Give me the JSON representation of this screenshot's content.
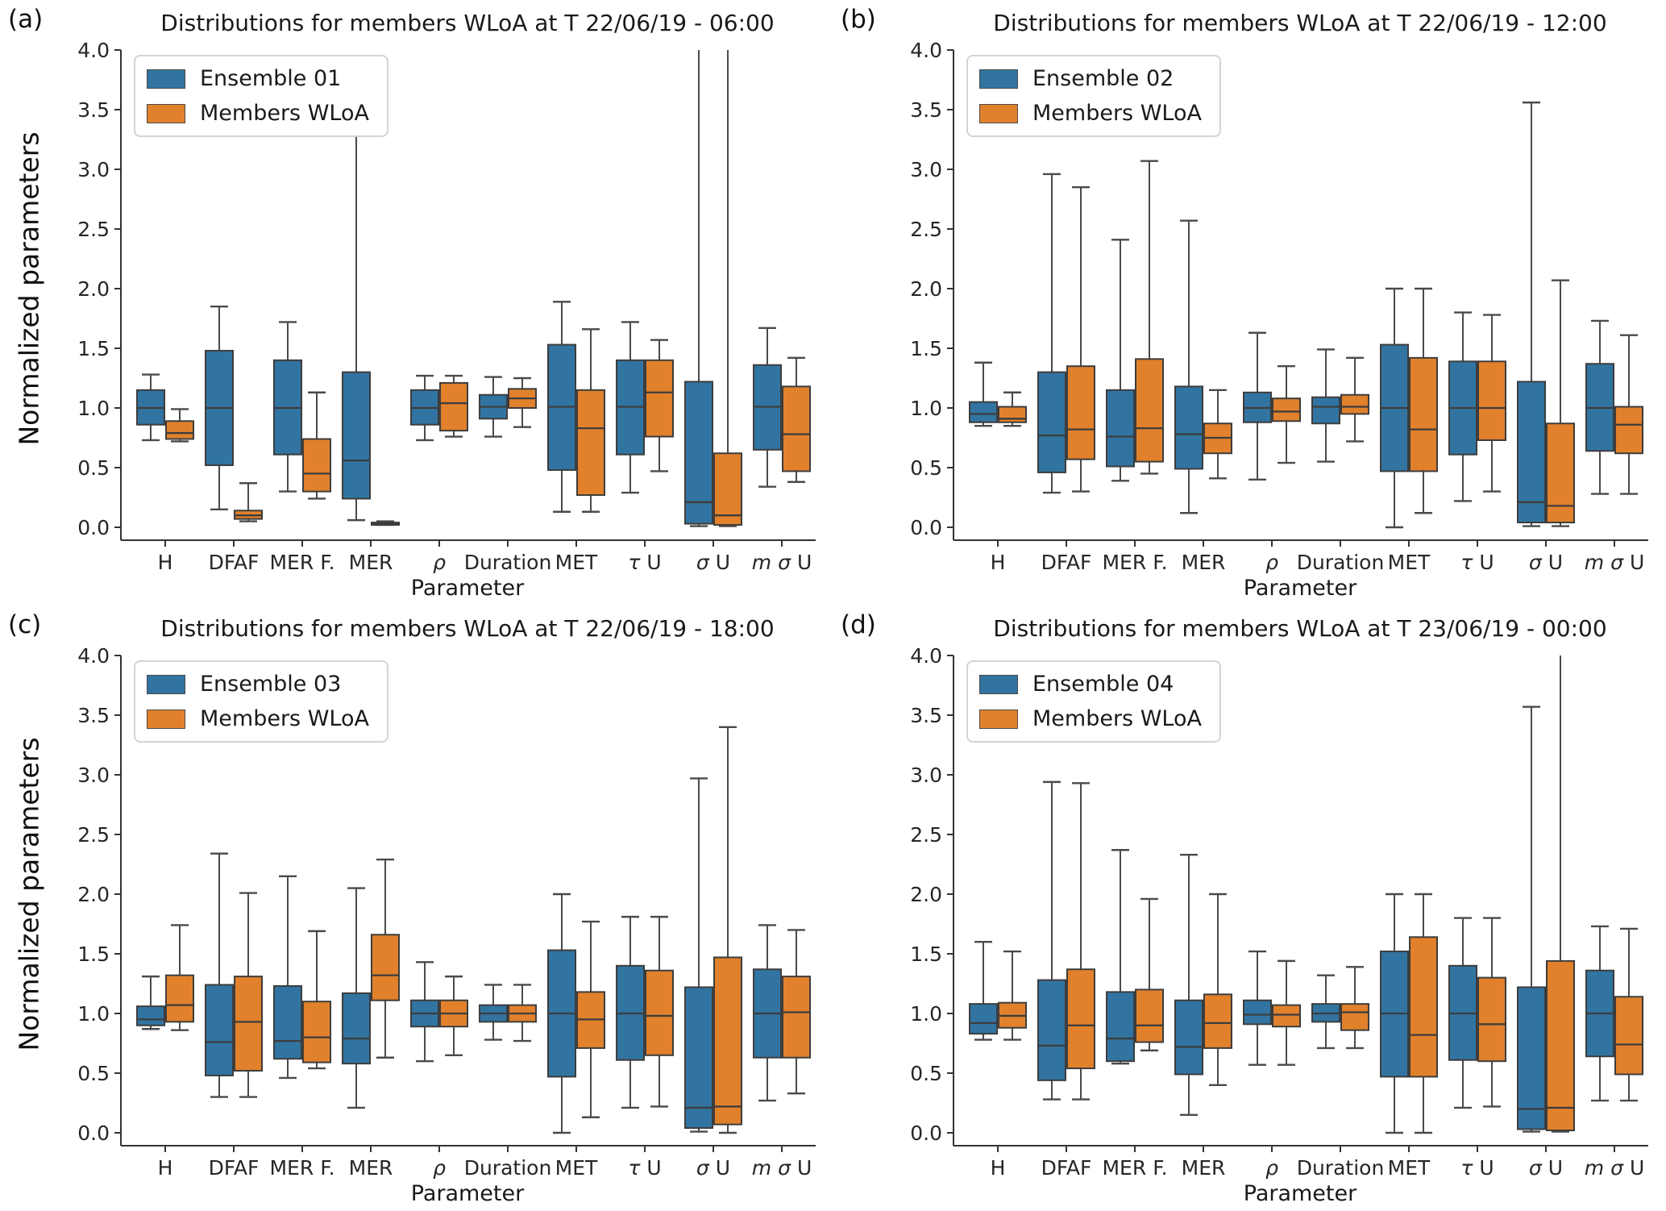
{
  "box_value_order": "whisker_low, q1, median, q3, whisker_high",
  "colors": {
    "ensemble_blue": "#3274a1",
    "members_orange": "#e1812c",
    "box_edge": "#3d3d3d",
    "whisker": "#4a4a4a",
    "axis": "#333333"
  },
  "chart_data": [
    {
      "type": "box",
      "panel_letter": "(a)",
      "title": "Distributions for members WLoA at T 22/06/19 - 06:00",
      "xlabel": "Parameter",
      "ylabel": "Normalized parameters",
      "ylim": [
        0.0,
        4.0
      ],
      "ytick_step": 0.5,
      "grid": false,
      "legend_position": "upper left",
      "legend": [
        "Ensemble 01",
        "Members WLoA"
      ],
      "categories": [
        "H",
        "DFAF",
        "MER F.",
        "MER",
        "ρ",
        "Duration",
        "MET",
        "τ U",
        "σ U",
        "m σ U"
      ],
      "series": [
        {
          "name": "Ensemble 01",
          "color": "#3274a1",
          "boxes": [
            [
              0.73,
              0.86,
              1.0,
              1.15,
              1.28
            ],
            [
              0.15,
              0.52,
              1.0,
              1.48,
              1.85
            ],
            [
              0.3,
              0.61,
              1.0,
              1.4,
              1.72
            ],
            [
              0.06,
              0.24,
              0.56,
              1.3,
              3.58
            ],
            [
              0.73,
              0.86,
              1.0,
              1.15,
              1.27
            ],
            [
              0.76,
              0.91,
              1.01,
              1.11,
              1.26
            ],
            [
              0.13,
              0.48,
              1.01,
              1.53,
              1.89
            ],
            [
              0.29,
              0.61,
              1.01,
              1.4,
              1.72
            ],
            [
              0.01,
              0.03,
              0.21,
              1.22,
              4.5
            ],
            [
              0.34,
              0.65,
              1.01,
              1.36,
              1.67
            ]
          ]
        },
        {
          "name": "Members WLoA",
          "color": "#e1812c",
          "boxes": [
            [
              0.72,
              0.74,
              0.79,
              0.89,
              0.99
            ],
            [
              0.05,
              0.07,
              0.1,
              0.14,
              0.37
            ],
            [
              0.24,
              0.3,
              0.45,
              0.74,
              1.13
            ],
            [
              0.02,
              0.02,
              0.03,
              0.04,
              0.05
            ],
            [
              0.76,
              0.81,
              1.04,
              1.21,
              1.27
            ],
            [
              0.84,
              1.0,
              1.08,
              1.16,
              1.25
            ],
            [
              0.13,
              0.27,
              0.83,
              1.15,
              1.66
            ],
            [
              0.47,
              0.76,
              1.13,
              1.4,
              1.57
            ],
            [
              0.01,
              0.02,
              0.1,
              0.62,
              4.5
            ],
            [
              0.38,
              0.47,
              0.78,
              1.18,
              1.42
            ]
          ]
        }
      ]
    },
    {
      "type": "box",
      "panel_letter": "(b)",
      "title": "Distributions for members WLoA at T 22/06/19 - 12:00",
      "xlabel": "Parameter",
      "ylabel": "Normalized parameters",
      "ylim": [
        0.0,
        4.0
      ],
      "ytick_step": 0.5,
      "grid": false,
      "legend_position": "upper left",
      "legend": [
        "Ensemble 02",
        "Members WLoA"
      ],
      "categories": [
        "H",
        "DFAF",
        "MER F.",
        "MER",
        "ρ",
        "Duration",
        "MET",
        "τ U",
        "σ U",
        "m σ U"
      ],
      "series": [
        {
          "name": "Ensemble 02",
          "color": "#3274a1",
          "boxes": [
            [
              0.85,
              0.88,
              0.95,
              1.05,
              1.38
            ],
            [
              0.29,
              0.46,
              0.77,
              1.3,
              2.96
            ],
            [
              0.39,
              0.51,
              0.76,
              1.15,
              2.41
            ],
            [
              0.12,
              0.49,
              0.78,
              1.18,
              2.57
            ],
            [
              0.4,
              0.88,
              1.0,
              1.13,
              1.63
            ],
            [
              0.55,
              0.87,
              1.01,
              1.09,
              1.49
            ],
            [
              0.0,
              0.47,
              1.0,
              1.53,
              2.0
            ],
            [
              0.22,
              0.61,
              1.0,
              1.39,
              1.8
            ],
            [
              0.01,
              0.04,
              0.21,
              1.22,
              3.56
            ],
            [
              0.28,
              0.64,
              1.0,
              1.37,
              1.73
            ]
          ]
        },
        {
          "name": "Members WLoA",
          "color": "#e1812c",
          "boxes": [
            [
              0.85,
              0.88,
              0.91,
              1.01,
              1.13
            ],
            [
              0.3,
              0.57,
              0.82,
              1.35,
              2.85
            ],
            [
              0.45,
              0.55,
              0.83,
              1.41,
              3.07
            ],
            [
              0.41,
              0.62,
              0.75,
              0.87,
              1.15
            ],
            [
              0.54,
              0.89,
              0.97,
              1.08,
              1.35
            ],
            [
              0.72,
              0.95,
              1.01,
              1.11,
              1.42
            ],
            [
              0.12,
              0.47,
              0.82,
              1.42,
              2.0
            ],
            [
              0.3,
              0.73,
              1.0,
              1.39,
              1.78
            ],
            [
              0.01,
              0.04,
              0.18,
              0.87,
              2.07
            ],
            [
              0.28,
              0.62,
              0.86,
              1.01,
              1.61
            ]
          ]
        }
      ]
    },
    {
      "type": "box",
      "panel_letter": "(c)",
      "title": "Distributions for members WLoA at T 22/06/19 - 18:00",
      "xlabel": "Parameter",
      "ylabel": "Normalized parameters",
      "ylim": [
        0.0,
        4.0
      ],
      "ytick_step": 0.5,
      "grid": false,
      "legend_position": "upper left",
      "legend": [
        "Ensemble 03",
        "Members WLoA"
      ],
      "categories": [
        "H",
        "DFAF",
        "MER F.",
        "MER",
        "ρ",
        "Duration",
        "MET",
        "τ U",
        "σ U",
        "m σ U"
      ],
      "series": [
        {
          "name": "Ensemble 03",
          "color": "#3274a1",
          "boxes": [
            [
              0.87,
              0.9,
              0.95,
              1.06,
              1.31
            ],
            [
              0.3,
              0.48,
              0.76,
              1.24,
              2.34
            ],
            [
              0.46,
              0.62,
              0.77,
              1.23,
              2.15
            ],
            [
              0.21,
              0.58,
              0.79,
              1.17,
              2.05
            ],
            [
              0.6,
              0.89,
              1.0,
              1.11,
              1.43
            ],
            [
              0.78,
              0.93,
              1.0,
              1.07,
              1.24
            ],
            [
              0.0,
              0.47,
              1.0,
              1.53,
              2.0
            ],
            [
              0.21,
              0.61,
              1.0,
              1.4,
              1.81
            ],
            [
              0.01,
              0.04,
              0.21,
              1.22,
              2.97
            ],
            [
              0.27,
              0.63,
              1.0,
              1.37,
              1.74
            ]
          ]
        },
        {
          "name": "Members WLoA",
          "color": "#e1812c",
          "boxes": [
            [
              0.86,
              0.93,
              1.07,
              1.32,
              1.74
            ],
            [
              0.3,
              0.52,
              0.93,
              1.31,
              2.01
            ],
            [
              0.54,
              0.59,
              0.8,
              1.1,
              1.69
            ],
            [
              0.63,
              1.11,
              1.32,
              1.66,
              2.29
            ],
            [
              0.65,
              0.89,
              1.0,
              1.11,
              1.31
            ],
            [
              0.77,
              0.93,
              1.0,
              1.07,
              1.24
            ],
            [
              0.13,
              0.71,
              0.95,
              1.18,
              1.77
            ],
            [
              0.22,
              0.65,
              0.98,
              1.36,
              1.81
            ],
            [
              0.0,
              0.07,
              0.22,
              1.47,
              3.4
            ],
            [
              0.33,
              0.63,
              1.01,
              1.31,
              1.7
            ]
          ]
        }
      ]
    },
    {
      "type": "box",
      "panel_letter": "(d)",
      "title": "Distributions for members WLoA at T 23/06/19 - 00:00",
      "xlabel": "Parameter",
      "ylabel": "Normalized parameters",
      "ylim": [
        0.0,
        4.0
      ],
      "ytick_step": 0.5,
      "grid": false,
      "legend_position": "upper left",
      "legend": [
        "Ensemble 04",
        "Members WLoA"
      ],
      "categories": [
        "H",
        "DFAF",
        "MER F.",
        "MER",
        "ρ",
        "Duration",
        "MET",
        "τ U",
        "σ U",
        "m σ U"
      ],
      "series": [
        {
          "name": "Ensemble 04",
          "color": "#3274a1",
          "boxes": [
            [
              0.78,
              0.83,
              0.92,
              1.08,
              1.6
            ],
            [
              0.28,
              0.44,
              0.73,
              1.28,
              2.94
            ],
            [
              0.58,
              0.6,
              0.79,
              1.18,
              2.37
            ],
            [
              0.15,
              0.49,
              0.72,
              1.11,
              2.33
            ],
            [
              0.57,
              0.91,
              0.99,
              1.11,
              1.52
            ],
            [
              0.71,
              0.93,
              1.0,
              1.08,
              1.32
            ],
            [
              0.0,
              0.47,
              1.0,
              1.52,
              2.0
            ],
            [
              0.21,
              0.61,
              1.0,
              1.4,
              1.8
            ],
            [
              0.01,
              0.03,
              0.2,
              1.22,
              3.57
            ],
            [
              0.27,
              0.64,
              1.0,
              1.36,
              1.73
            ]
          ]
        },
        {
          "name": "Members WLoA",
          "color": "#e1812c",
          "boxes": [
            [
              0.78,
              0.88,
              0.98,
              1.09,
              1.52
            ],
            [
              0.28,
              0.54,
              0.9,
              1.37,
              2.93
            ],
            [
              0.69,
              0.76,
              0.9,
              1.2,
              1.96
            ],
            [
              0.4,
              0.71,
              0.92,
              1.16,
              2.0
            ],
            [
              0.57,
              0.89,
              0.99,
              1.07,
              1.44
            ],
            [
              0.71,
              0.86,
              1.01,
              1.08,
              1.39
            ],
            [
              0.0,
              0.47,
              0.82,
              1.64,
              2.0
            ],
            [
              0.22,
              0.6,
              0.91,
              1.3,
              1.8
            ],
            [
              0.01,
              0.02,
              0.21,
              1.44,
              4.4
            ],
            [
              0.27,
              0.49,
              0.74,
              1.14,
              1.71
            ]
          ]
        }
      ]
    }
  ]
}
